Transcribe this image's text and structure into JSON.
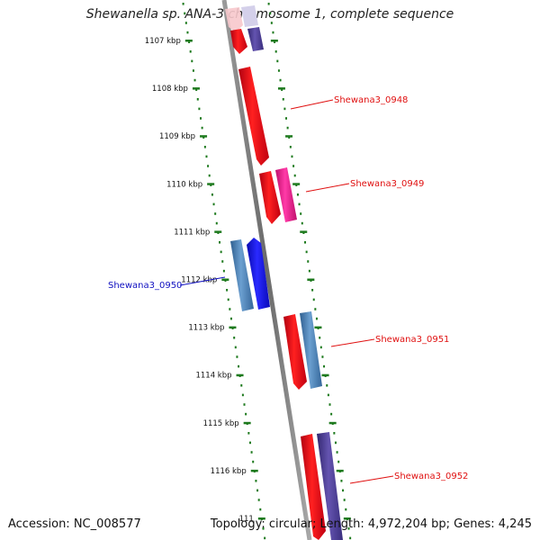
{
  "title": "Shewanella sp. ANA-3 chromosome 1, complete sequence",
  "footer": {
    "accession": "Accession: NC_008577",
    "summary": "Topology: circular; Length: 4,972,204 bp; Genes: 4,245"
  },
  "ticks": [
    "1107 kbp",
    "1108 kbp",
    "1109 kbp",
    "1110 kbp",
    "1111 kbp",
    "1112 kbp",
    "1113 kbp",
    "1114 kbp",
    "1115 kbp",
    "1116 kbp",
    "111"
  ],
  "labels": [
    {
      "text": "Shewana3_0948",
      "color": "#e01010"
    },
    {
      "text": "Shewana3_0949",
      "color": "#e01010"
    },
    {
      "text": "Shewana3_0950",
      "color": "#1010c0"
    },
    {
      "text": "Shewana3_0951",
      "color": "#e01010"
    },
    {
      "text": "Shewana3_0952",
      "color": "#e01010"
    }
  ],
  "colors": {
    "backbone": "#808080",
    "tick_dots": "#1e7a1e",
    "cds_forward": "#e8101a",
    "cds_reverse_steel": "#4a7fb5",
    "cds_reverse_blue": "#1414e0",
    "pink": "#e8148c",
    "purple": "#4a3c90"
  }
}
